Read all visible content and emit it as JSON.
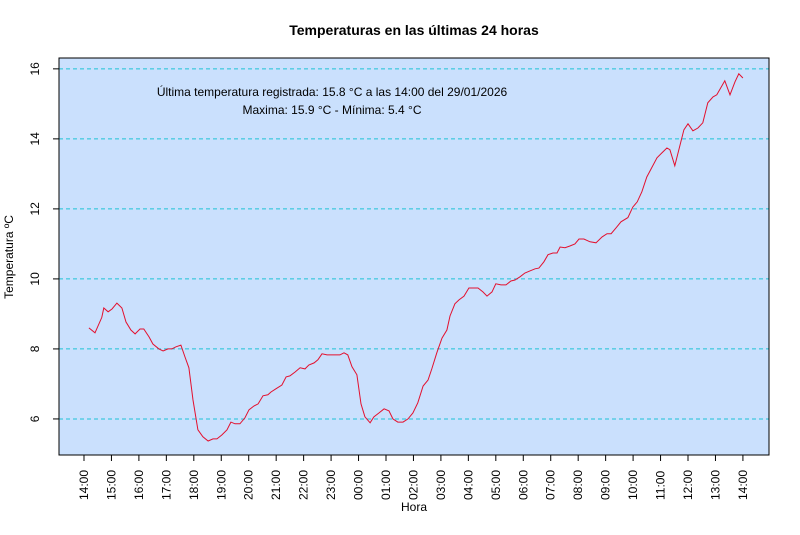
{
  "chart_data": {
    "type": "line",
    "title": "Temperaturas en las últimas 24 horas",
    "xlabel": "Hora",
    "ylabel": "Temperatura ºC",
    "annotations": [
      "Última temperatura registrada: 15.8 °C a las 14:00 del 29/01/2026",
      "Maxima: 15.9 °C - Mínima: 5.4 °C"
    ],
    "x_unit": "hours since 14:00 of previous day",
    "xlim": [
      -0.91,
      24.95
    ],
    "ylim": [
      4.97,
      16.31
    ],
    "x_tick_labels": [
      "14:00",
      "15:00",
      "16:00",
      "17:00",
      "18:00",
      "19:00",
      "20:00",
      "21:00",
      "22:00",
      "23:00",
      "00:00",
      "01:00",
      "02:00",
      "03:00",
      "04:00",
      "05:00",
      "06:00",
      "07:00",
      "08:00",
      "09:00",
      "10:00",
      "11:00",
      "12:00",
      "13:00",
      "14:00"
    ],
    "y_ticks": [
      6,
      8,
      10,
      12,
      14,
      16
    ],
    "y_tick_labels": [
      "6",
      "8",
      "10",
      "12",
      "14",
      "16"
    ],
    "grid": "horizontal dashed",
    "colors": {
      "plot_bg": "#cae0fd",
      "line": "#e3102e",
      "grid": "#1fc2d6"
    },
    "series": [
      {
        "name": "Temperatura",
        "points": [
          [
            0.18,
            8.6
          ],
          [
            0.4,
            8.46
          ],
          [
            0.65,
            8.9
          ],
          [
            0.72,
            9.17
          ],
          [
            0.88,
            9.06
          ],
          [
            1.02,
            9.14
          ],
          [
            1.2,
            9.31
          ],
          [
            1.38,
            9.17
          ],
          [
            1.53,
            8.77
          ],
          [
            1.71,
            8.54
          ],
          [
            1.86,
            8.43
          ],
          [
            2.04,
            8.57
          ],
          [
            2.18,
            8.57
          ],
          [
            2.37,
            8.34
          ],
          [
            2.51,
            8.14
          ],
          [
            2.73,
            8.0
          ],
          [
            2.88,
            7.94
          ],
          [
            3.06,
            8.0
          ],
          [
            3.2,
            8.0
          ],
          [
            3.35,
            8.06
          ],
          [
            3.53,
            8.11
          ],
          [
            3.68,
            7.77
          ],
          [
            3.82,
            7.46
          ],
          [
            3.97,
            6.54
          ],
          [
            4.15,
            5.69
          ],
          [
            4.33,
            5.49
          ],
          [
            4.52,
            5.37
          ],
          [
            4.7,
            5.43
          ],
          [
            4.84,
            5.43
          ],
          [
            5.02,
            5.54
          ],
          [
            5.21,
            5.69
          ],
          [
            5.35,
            5.91
          ],
          [
            5.5,
            5.86
          ],
          [
            5.68,
            5.86
          ],
          [
            5.86,
            6.03
          ],
          [
            6.01,
            6.26
          ],
          [
            6.19,
            6.37
          ],
          [
            6.34,
            6.43
          ],
          [
            6.52,
            6.66
          ],
          [
            6.7,
            6.69
          ],
          [
            6.81,
            6.77
          ],
          [
            6.99,
            6.86
          ],
          [
            7.21,
            6.97
          ],
          [
            7.36,
            7.2
          ],
          [
            7.5,
            7.23
          ],
          [
            7.69,
            7.34
          ],
          [
            7.87,
            7.46
          ],
          [
            8.05,
            7.43
          ],
          [
            8.19,
            7.54
          ],
          [
            8.38,
            7.6
          ],
          [
            8.52,
            7.69
          ],
          [
            8.67,
            7.86
          ],
          [
            8.85,
            7.83
          ],
          [
            9.0,
            7.83
          ],
          [
            9.18,
            7.83
          ],
          [
            9.32,
            7.83
          ],
          [
            9.47,
            7.89
          ],
          [
            9.61,
            7.83
          ],
          [
            9.76,
            7.49
          ],
          [
            9.94,
            7.26
          ],
          [
            10.09,
            6.43
          ],
          [
            10.23,
            6.06
          ],
          [
            10.42,
            5.89
          ],
          [
            10.56,
            6.06
          ],
          [
            10.74,
            6.17
          ],
          [
            10.93,
            6.29
          ],
          [
            11.11,
            6.23
          ],
          [
            11.25,
            6.0
          ],
          [
            11.43,
            5.91
          ],
          [
            11.62,
            5.91
          ],
          [
            11.8,
            6.0
          ],
          [
            11.98,
            6.17
          ],
          [
            12.16,
            6.46
          ],
          [
            12.35,
            6.94
          ],
          [
            12.53,
            7.11
          ],
          [
            12.67,
            7.43
          ],
          [
            12.85,
            7.89
          ],
          [
            13.04,
            8.31
          ],
          [
            13.22,
            8.54
          ],
          [
            13.33,
            8.94
          ],
          [
            13.51,
            9.29
          ],
          [
            13.66,
            9.4
          ],
          [
            13.84,
            9.51
          ],
          [
            14.02,
            9.74
          ],
          [
            14.2,
            9.74
          ],
          [
            14.35,
            9.74
          ],
          [
            14.53,
            9.63
          ],
          [
            14.68,
            9.51
          ],
          [
            14.86,
            9.63
          ],
          [
            15.0,
            9.86
          ],
          [
            15.19,
            9.83
          ],
          [
            15.37,
            9.83
          ],
          [
            15.55,
            9.94
          ],
          [
            15.7,
            9.97
          ],
          [
            15.88,
            10.06
          ],
          [
            16.06,
            10.17
          ],
          [
            16.24,
            10.23
          ],
          [
            16.43,
            10.29
          ],
          [
            16.57,
            10.31
          ],
          [
            16.75,
            10.49
          ],
          [
            16.9,
            10.69
          ],
          [
            17.08,
            10.74
          ],
          [
            17.23,
            10.74
          ],
          [
            17.34,
            10.91
          ],
          [
            17.52,
            10.89
          ],
          [
            17.7,
            10.94
          ],
          [
            17.88,
            11.0
          ],
          [
            18.03,
            11.14
          ],
          [
            18.21,
            11.14
          ],
          [
            18.43,
            11.06
          ],
          [
            18.65,
            11.03
          ],
          [
            18.87,
            11.2
          ],
          [
            19.05,
            11.29
          ],
          [
            19.2,
            11.29
          ],
          [
            19.38,
            11.46
          ],
          [
            19.56,
            11.63
          ],
          [
            19.81,
            11.75
          ],
          [
            19.99,
            12.05
          ],
          [
            20.15,
            12.2
          ],
          [
            20.32,
            12.49
          ],
          [
            20.5,
            12.91
          ],
          [
            20.87,
            13.46
          ],
          [
            21.05,
            13.6
          ],
          [
            21.23,
            13.74
          ],
          [
            21.34,
            13.69
          ],
          [
            21.52,
            13.23
          ],
          [
            21.85,
            14.26
          ],
          [
            22.0,
            14.43
          ],
          [
            22.18,
            14.23
          ],
          [
            22.36,
            14.31
          ],
          [
            22.54,
            14.46
          ],
          [
            22.72,
            15.03
          ],
          [
            22.91,
            15.2
          ],
          [
            23.05,
            15.26
          ],
          [
            23.34,
            15.66
          ],
          [
            23.53,
            15.26
          ],
          [
            23.71,
            15.63
          ],
          [
            23.85,
            15.86
          ],
          [
            24.0,
            15.74
          ]
        ]
      }
    ]
  }
}
